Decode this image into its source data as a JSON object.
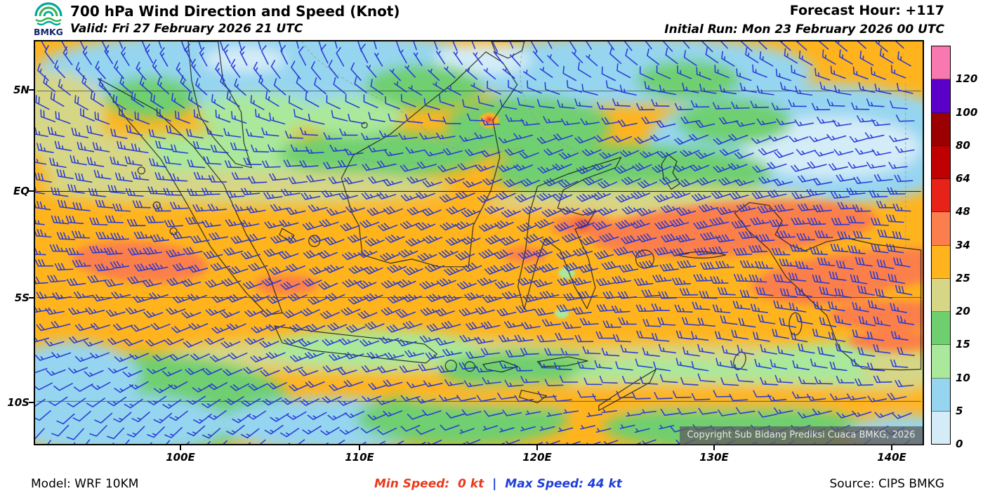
{
  "header": {
    "title": "700 hPa Wind Direction and Speed (Knot)",
    "valid": "Valid: Fri 27 February 2026 21 UTC",
    "forecast_hour": "Forecast Hour: +117",
    "initial_run": "Initial Run: Mon 23 February 2026 00 UTC",
    "logo_text": "BMKG"
  },
  "map": {
    "lat_labels": [
      "5N",
      "EQ",
      "5S",
      "10S"
    ],
    "lon_labels": [
      "100E",
      "110E",
      "120E",
      "130E",
      "140E"
    ],
    "copyright": "Copyright Sub Bidang Prediksi Cuaca BMKG, 2026",
    "barb_color": "#2336d6"
  },
  "colorbar": {
    "labels": [
      "120",
      "100",
      "80",
      "64",
      "48",
      "34",
      "25",
      "20",
      "15",
      "10",
      "5",
      "0"
    ],
    "colors_top_to_bottom": [
      "#f878b0",
      "#5b00c8",
      "#9a0000",
      "#c00000",
      "#e62219",
      "#fb7f4c",
      "#ffb41e",
      "#d6d687",
      "#6fcf6f",
      "#aae89b",
      "#96d5f0",
      "#d4ecf8"
    ]
  },
  "footer": {
    "model": "Model: WRF 10KM",
    "min_speed": "Min Speed:  0 kt",
    "separator": "|",
    "max_speed": "Max Speed: 44 kt",
    "source": "Source: CIPS BMKG",
    "min_color": "#e8391c",
    "max_color": "#1f3fd8"
  },
  "chart_data": {
    "type": "heatmap",
    "title": "700 hPa Wind Direction and Speed (Knot)",
    "valid": "Fri 27 February 2026 21 UTC",
    "initial_run": "Mon 23 February 2026 00 UTC",
    "forecast_hour": "+117",
    "units": "kt",
    "region": "Indonesia, approx 92E-142E and 7N-12S",
    "x_ticks": [
      "100E",
      "110E",
      "120E",
      "130E",
      "140E"
    ],
    "y_ticks": [
      "5N",
      "EQ",
      "5S",
      "10S"
    ],
    "speed_scale_kt": [
      0,
      5,
      10,
      15,
      20,
      25,
      34,
      48,
      64,
      80,
      100,
      120
    ],
    "scale_colors_low_to_high": [
      "#d4ecf8",
      "#96d5f0",
      "#aae89b",
      "#6fcf6f",
      "#d6d687",
      "#ffb41e",
      "#fb7f4c",
      "#e62219",
      "#c00000",
      "#9a0000",
      "#5b00c8",
      "#f878b0"
    ],
    "min_speed_kt": 0,
    "max_speed_kt": 44,
    "overlay": "blue wind barbs on regular grid",
    "legend_position": "right",
    "model": "WRF 10KM",
    "source": "CIPS BMKG",
    "field_summary": "Dominant 25-34 kt westerly band along the equator to 5S; 34-48 kt patches west of Sumatra and from Banda Sea to Papua near 3-5S; 5-15 kt over northern (5N) and southern (10S) edges"
  }
}
